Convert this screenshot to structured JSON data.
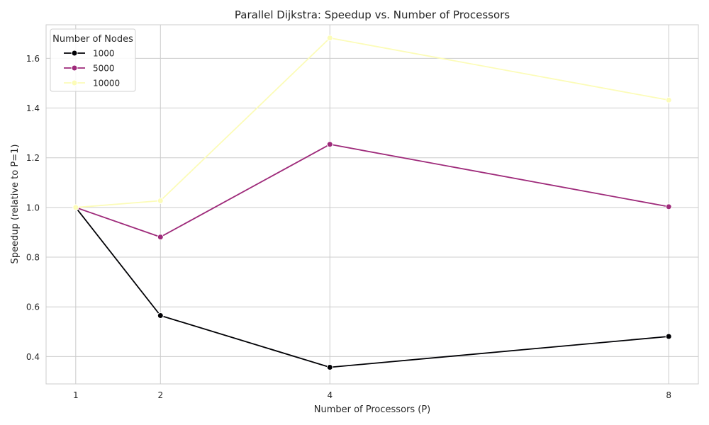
{
  "chart_data": {
    "type": "line",
    "title": "Parallel Dijkstra: Speedup vs. Number of Processors",
    "xlabel": "Number of Processors (P)",
    "ylabel": "Speedup (relative to P=1)",
    "x": [
      1,
      2,
      4,
      8
    ],
    "xticks": [
      "1",
      "2",
      "4",
      "8"
    ],
    "xlim": [
      0.65,
      8.35
    ],
    "ylim": [
      0.29,
      1.735
    ],
    "yticks": [
      0.4,
      0.6,
      0.8,
      1.0,
      1.2,
      1.4,
      1.6
    ],
    "ytick_labels": [
      "0.4",
      "0.6",
      "0.8",
      "1.0",
      "1.2",
      "1.4",
      "1.6"
    ],
    "grid": true,
    "legend": {
      "title": "Number of Nodes",
      "position": "top-left"
    },
    "series": [
      {
        "name": "1000",
        "color": "#000004",
        "values": [
          1.0,
          0.565,
          0.357,
          0.481
        ]
      },
      {
        "name": "5000",
        "color": "#9e2a7a",
        "values": [
          1.0,
          0.881,
          1.254,
          1.003
        ]
      },
      {
        "name": "10000",
        "color": "#fcfcb8",
        "values": [
          1.0,
          1.027,
          1.682,
          1.432
        ]
      }
    ]
  }
}
